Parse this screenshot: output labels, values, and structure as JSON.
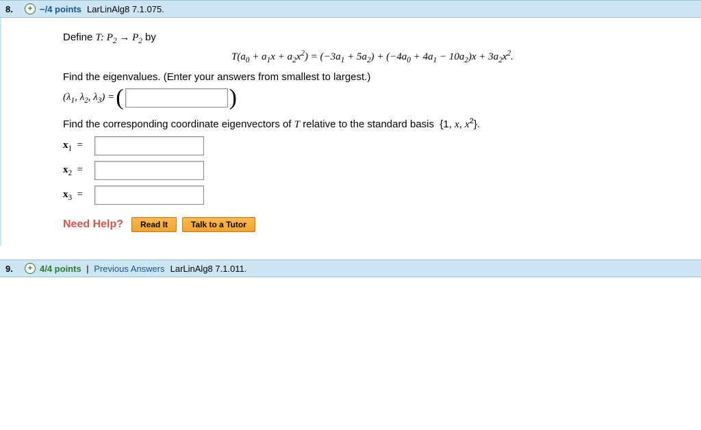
{
  "questions": [
    {
      "number": "8.",
      "points": "−/4 points",
      "points_color": "#1a5490",
      "source": "LarLinAlg8 7.1.075.",
      "prev_answers": null,
      "body": {
        "define_text_prefix": "Define ",
        "define_text_math": "T: P₂ → P₂",
        "define_text_suffix": " by",
        "formula": "T(a₀ + a₁x + a₂x²) = (−3a₁ + 5a₂) + (−4a₀ + 4a₁ − 10a₂)x + 3a₂x².",
        "find_eigen": "Find the eigenvalues. (Enter your answers from smallest to largest.)",
        "eigen_label": "(λ₁, λ₂, λ₃) = ",
        "find_vectors_prefix": "Find the corresponding coordinate eigenvectors of ",
        "find_vectors_T": "T",
        "find_vectors_mid": " relative to the standard basis  {1, ",
        "find_vectors_x": "x",
        "find_vectors_x2": "x²",
        "find_vectors_suffix": "}.",
        "vec_labels": [
          "x₁  =",
          "x₂  =",
          "x₃  ="
        ],
        "need_help_label": "Need Help?",
        "help_buttons": [
          "Read It",
          "Talk to a Tutor"
        ]
      }
    },
    {
      "number": "9.",
      "points": "4/4 points",
      "points_color": "#2a7a2a",
      "source": "LarLinAlg8 7.1.011.",
      "prev_answers": "Previous Answers",
      "body": null
    }
  ],
  "colors": {
    "header_bg": "#cce5f2",
    "help_btn_bg": "#f7a528",
    "need_help": "#d9534f"
  }
}
